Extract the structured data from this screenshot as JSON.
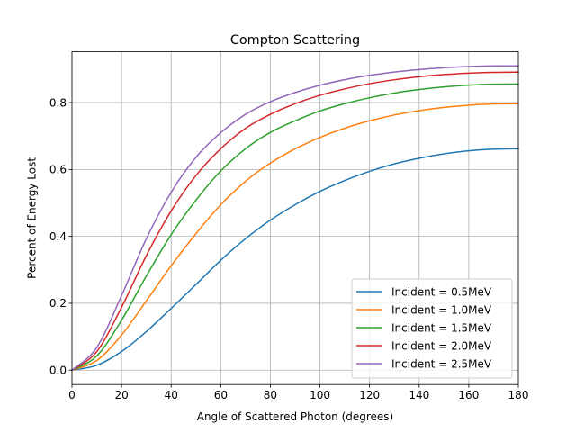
{
  "chart_data": {
    "type": "line",
    "title": "Compton Scattering",
    "xlabel": "Angle of Scattered Photon (degrees)",
    "ylabel": "Percent of Energy Lost",
    "xlim": [
      0,
      180
    ],
    "ylim": [
      -0.043,
      0.952
    ],
    "xticks": [
      0,
      20,
      40,
      60,
      80,
      100,
      120,
      140,
      160,
      180
    ],
    "yticks": [
      0.0,
      0.2,
      0.4,
      0.6,
      0.8
    ],
    "ytick_labels": [
      "0.0",
      "0.2",
      "0.4",
      "0.6",
      "0.8"
    ],
    "grid": true,
    "legend_position": "lower-right",
    "x": [
      0,
      10,
      20,
      30,
      40,
      50,
      60,
      70,
      80,
      90,
      100,
      110,
      120,
      130,
      140,
      150,
      160,
      170,
      180
    ],
    "series": [
      {
        "name": "Incident = 0.5MeV",
        "color": "#1f77b4",
        "values": [
          0.0,
          0.0147,
          0.0557,
          0.1153,
          0.1847,
          0.2562,
          0.3286,
          0.3931,
          0.4484,
          0.4946,
          0.5345,
          0.567,
          0.5945,
          0.6167,
          0.6336,
          0.6466,
          0.6558,
          0.6608,
          0.662
        ]
      },
      {
        "name": "Incident = 1.0MeV",
        "color": "#ff7f0e",
        "values": [
          0.0,
          0.0289,
          0.105,
          0.2073,
          0.312,
          0.4082,
          0.4946,
          0.5648,
          0.619,
          0.6618,
          0.6958,
          0.7235,
          0.7456,
          0.763,
          0.776,
          0.7857,
          0.7922,
          0.796,
          0.7965
        ]
      },
      {
        "name": "Incident = 1.5MeV",
        "color": "#2ca02c",
        "values": [
          0.0,
          0.0424,
          0.1492,
          0.2817,
          0.405,
          0.5083,
          0.5955,
          0.6621,
          0.7108,
          0.7456,
          0.775,
          0.7968,
          0.8145,
          0.8285,
          0.8391,
          0.847,
          0.8522,
          0.855,
          0.8555
        ]
      },
      {
        "name": "Incident = 2.0MeV",
        "color": "#d62728",
        "values": [
          0.0,
          0.0554,
          0.188,
          0.3426,
          0.4759,
          0.5819,
          0.662,
          0.723,
          0.765,
          0.7967,
          0.8218,
          0.841,
          0.8565,
          0.8683,
          0.8773,
          0.8838,
          0.888,
          0.8902,
          0.891
        ]
      },
      {
        "name": "Incident = 2.5MeV",
        "color": "#9467bd",
        "values": [
          0.0,
          0.0678,
          0.223,
          0.393,
          0.5316,
          0.6362,
          0.71,
          0.765,
          0.8027,
          0.8301,
          0.8519,
          0.8686,
          0.8815,
          0.8914,
          0.8989,
          0.9043,
          0.9078,
          0.9098,
          0.91
        ]
      }
    ]
  }
}
